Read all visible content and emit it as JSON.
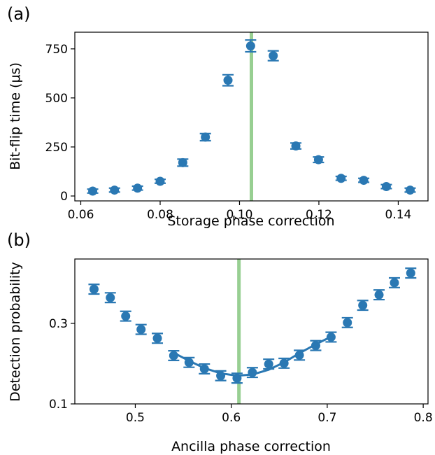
{
  "colors": {
    "series": "#2a78b3",
    "highlight": "#98cf92",
    "axis": "#000000"
  },
  "chart_data": [
    {
      "panel": "(a)",
      "type": "scatter",
      "xlabel": "Storage phase correction",
      "ylabel": "Bit-flip time (μs)",
      "xlim": [
        0.0585,
        0.1475
      ],
      "ylim": [
        -25,
        835
      ],
      "xticks": [
        0.06,
        0.08,
        0.1,
        0.12,
        0.14
      ],
      "xtick_labels": [
        "0.06",
        "0.08",
        "0.10",
        "0.12",
        "0.14"
      ],
      "yticks": [
        0,
        250,
        500,
        750
      ],
      "ytick_labels": [
        "0",
        "250",
        "500",
        "750"
      ],
      "grid": false,
      "highlight_x": 0.103,
      "points": [
        {
          "x": 0.063,
          "y": 25,
          "err": 10
        },
        {
          "x": 0.0685,
          "y": 30,
          "err": 10
        },
        {
          "x": 0.0743,
          "y": 40,
          "err": 10
        },
        {
          "x": 0.08,
          "y": 75,
          "err": 10
        },
        {
          "x": 0.0857,
          "y": 170,
          "err": 18
        },
        {
          "x": 0.0914,
          "y": 300,
          "err": 18
        },
        {
          "x": 0.0971,
          "y": 590,
          "err": 28
        },
        {
          "x": 0.1028,
          "y": 765,
          "err": 30
        },
        {
          "x": 0.1085,
          "y": 715,
          "err": 25
        },
        {
          "x": 0.1142,
          "y": 255,
          "err": 15
        },
        {
          "x": 0.1199,
          "y": 185,
          "err": 14
        },
        {
          "x": 0.1256,
          "y": 90,
          "err": 10
        },
        {
          "x": 0.1313,
          "y": 80,
          "err": 10
        },
        {
          "x": 0.137,
          "y": 48,
          "err": 10
        },
        {
          "x": 0.143,
          "y": 30,
          "err": 10
        }
      ]
    },
    {
      "panel": "(b)",
      "type": "scatter",
      "xlabel": "Ancilla phase correction",
      "ylabel": "Detection probability",
      "xlim": [
        0.437,
        0.805
      ],
      "ylim": [
        0.1,
        0.46
      ],
      "xticks": [
        0.5,
        0.6,
        0.7,
        0.8
      ],
      "xtick_labels": [
        "0.5",
        "0.6",
        "0.7",
        "0.8"
      ],
      "yticks": [
        0.1,
        0.3
      ],
      "ytick_labels": [
        "0.1",
        "0.3"
      ],
      "grid": false,
      "highlight_x": 0.608,
      "points": [
        {
          "x": 0.457,
          "y": 0.385,
          "err": 0.012
        },
        {
          "x": 0.474,
          "y": 0.364,
          "err": 0.012
        },
        {
          "x": 0.49,
          "y": 0.318,
          "err": 0.012
        },
        {
          "x": 0.506,
          "y": 0.285,
          "err": 0.012
        },
        {
          "x": 0.523,
          "y": 0.263,
          "err": 0.012
        },
        {
          "x": 0.54,
          "y": 0.22,
          "err": 0.012
        },
        {
          "x": 0.556,
          "y": 0.203,
          "err": 0.012
        },
        {
          "x": 0.572,
          "y": 0.187,
          "err": 0.012
        },
        {
          "x": 0.589,
          "y": 0.17,
          "err": 0.012
        },
        {
          "x": 0.606,
          "y": 0.164,
          "err": 0.012
        },
        {
          "x": 0.622,
          "y": 0.178,
          "err": 0.012
        },
        {
          "x": 0.639,
          "y": 0.199,
          "err": 0.012
        },
        {
          "x": 0.655,
          "y": 0.201,
          "err": 0.012
        },
        {
          "x": 0.671,
          "y": 0.221,
          "err": 0.012
        },
        {
          "x": 0.688,
          "y": 0.245,
          "err": 0.012
        },
        {
          "x": 0.704,
          "y": 0.266,
          "err": 0.012
        },
        {
          "x": 0.721,
          "y": 0.302,
          "err": 0.012
        },
        {
          "x": 0.737,
          "y": 0.345,
          "err": 0.012
        },
        {
          "x": 0.754,
          "y": 0.371,
          "err": 0.012
        },
        {
          "x": 0.77,
          "y": 0.401,
          "err": 0.012
        },
        {
          "x": 0.787,
          "y": 0.425,
          "err": 0.012
        }
      ],
      "fit": [
        {
          "x": 0.54,
          "y": 0.227
        },
        {
          "x": 0.556,
          "y": 0.207
        },
        {
          "x": 0.572,
          "y": 0.189
        },
        {
          "x": 0.589,
          "y": 0.176
        },
        {
          "x": 0.606,
          "y": 0.17
        },
        {
          "x": 0.622,
          "y": 0.173
        },
        {
          "x": 0.639,
          "y": 0.185
        },
        {
          "x": 0.655,
          "y": 0.203
        },
        {
          "x": 0.671,
          "y": 0.226
        },
        {
          "x": 0.688,
          "y": 0.248
        },
        {
          "x": 0.704,
          "y": 0.267
        }
      ]
    }
  ]
}
